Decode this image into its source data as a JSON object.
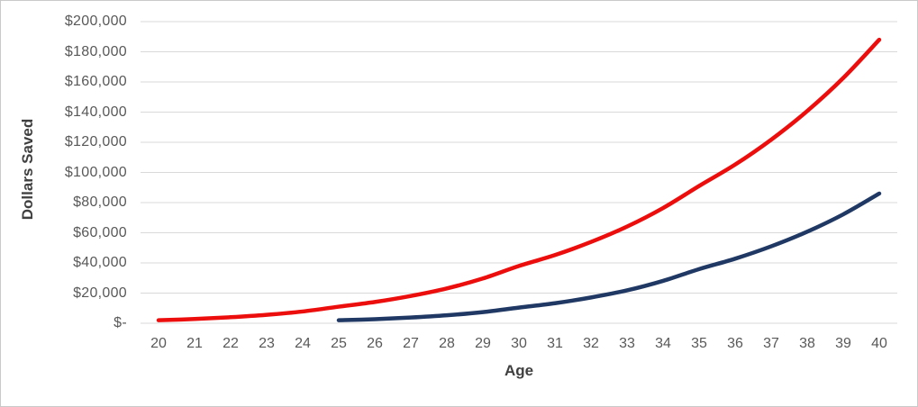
{
  "chart_data": {
    "type": "line",
    "title": "",
    "xlabel": "Age",
    "ylabel": "Dollars Saved",
    "x": [
      20,
      21,
      22,
      23,
      24,
      25,
      26,
      27,
      28,
      29,
      30,
      31,
      32,
      33,
      34,
      35,
      36,
      37,
      38,
      39,
      40
    ],
    "xlim": [
      20,
      40
    ],
    "ylim": [
      0,
      200000
    ],
    "ytick_step": 20000,
    "ytick_labels": [
      "$-",
      "$20,000",
      "$40,000",
      "$60,000",
      "$80,000",
      "$100,000",
      "$120,000",
      "$140,000",
      "$160,000",
      "$180,000",
      "$200,000"
    ],
    "grid": true,
    "legend_position": "none",
    "colors": {
      "grid_line": "#d9d9d9",
      "tick_text": "#595959",
      "axis_title_text": "#3f3f3f",
      "early_saver_line": "#ec0d0d",
      "late_saver_line": "#1f3864"
    },
    "series": [
      {
        "id": "red-line-start-age-20",
        "color": "#ec0d0d",
        "values": [
          2000,
          2800,
          4000,
          5600,
          7800,
          11000,
          14100,
          18100,
          23100,
          29700,
          38000,
          45200,
          53900,
          64100,
          76400,
          91000,
          105200,
          121700,
          140700,
          162600,
          188000
        ]
      },
      {
        "id": "navy-line-start-age-25",
        "color": "#1f3864",
        "values": [
          null,
          null,
          null,
          null,
          null,
          2000,
          2700,
          3800,
          5300,
          7400,
          10400,
          13300,
          17100,
          21800,
          28100,
          35900,
          42800,
          51000,
          60700,
          72200,
          86000
        ]
      }
    ]
  }
}
